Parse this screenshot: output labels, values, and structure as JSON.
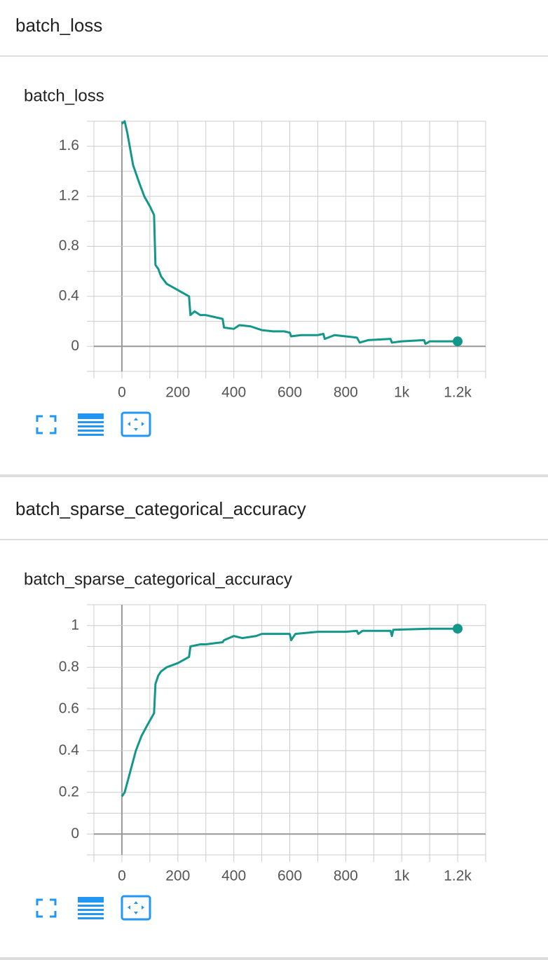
{
  "chart_data": [
    {
      "type": "line",
      "section": "batch_loss",
      "title": "batch_loss",
      "color": "#12978a",
      "grid": true,
      "x": [
        0,
        10,
        20,
        40,
        60,
        80,
        100,
        115,
        120,
        130,
        140,
        160,
        200,
        240,
        245,
        260,
        280,
        300,
        340,
        360,
        365,
        400,
        420,
        460,
        500,
        540,
        580,
        600,
        605,
        640,
        700,
        720,
        725,
        760,
        800,
        840,
        850,
        880,
        960,
        965,
        1000,
        1080,
        1085,
        1100,
        1200
      ],
      "values": [
        1.78,
        1.8,
        1.7,
        1.45,
        1.32,
        1.2,
        1.12,
        1.05,
        0.65,
        0.62,
        0.56,
        0.5,
        0.45,
        0.4,
        0.25,
        0.28,
        0.25,
        0.25,
        0.23,
        0.22,
        0.15,
        0.14,
        0.17,
        0.16,
        0.13,
        0.12,
        0.12,
        0.11,
        0.08,
        0.09,
        0.09,
        0.1,
        0.06,
        0.09,
        0.08,
        0.07,
        0.03,
        0.05,
        0.06,
        0.03,
        0.04,
        0.05,
        0.02,
        0.04,
        0.04
      ],
      "xlim": [
        -100,
        1300
      ],
      "xticks": [
        0,
        200,
        400,
        600,
        800,
        {
          "value": 1000,
          "label": "1k"
        },
        {
          "value": 1200,
          "label": "1.2k"
        }
      ],
      "ylim": [
        -0.2,
        1.8
      ],
      "yticks": [
        0,
        0.4,
        0.8,
        1.2,
        1.6
      ]
    },
    {
      "type": "line",
      "section": "batch_sparse_categorical_accuracy",
      "title": "batch_sparse_categorical_accuracy",
      "color": "#12978a",
      "grid": true,
      "x": [
        0,
        10,
        30,
        50,
        70,
        90,
        115,
        120,
        130,
        140,
        160,
        200,
        240,
        245,
        280,
        300,
        360,
        365,
        400,
        430,
        480,
        500,
        600,
        605,
        620,
        700,
        800,
        840,
        845,
        860,
        960,
        965,
        970,
        1100,
        1200
      ],
      "values": [
        0.18,
        0.2,
        0.3,
        0.4,
        0.47,
        0.52,
        0.58,
        0.72,
        0.76,
        0.78,
        0.8,
        0.82,
        0.85,
        0.9,
        0.91,
        0.91,
        0.92,
        0.93,
        0.95,
        0.94,
        0.95,
        0.96,
        0.96,
        0.93,
        0.96,
        0.97,
        0.97,
        0.975,
        0.96,
        0.975,
        0.975,
        0.95,
        0.98,
        0.985,
        0.985
      ],
      "xlim": [
        -100,
        1300
      ],
      "xticks": [
        0,
        200,
        400,
        600,
        800,
        {
          "value": 1000,
          "label": "1k"
        },
        {
          "value": 1200,
          "label": "1.2k"
        }
      ],
      "ylim": [
        -0.1,
        1.1
      ],
      "yticks": [
        0,
        0.2,
        0.4,
        0.6,
        0.8,
        1
      ]
    }
  ]
}
